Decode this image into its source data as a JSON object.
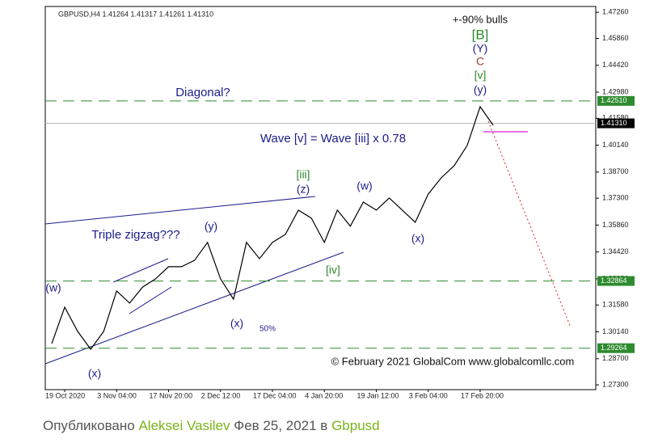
{
  "chart_data": {
    "type": "line",
    "header": "GBPUSD,H4  1.41264 1.41317 1.41261 1.41310",
    "categories": [
      null,
      "19 Oct 2020",
      null,
      null,
      null,
      "3 Nov 04:00",
      null,
      null,
      null,
      "17 Nov 20:00",
      null,
      null,
      null,
      "2 Dec 12:00",
      null,
      null,
      null,
      "17 Dec 04:00",
      null,
      null,
      null,
      "4 Jan 20:00",
      null,
      null,
      null,
      "19 Jan 12:00",
      null,
      null,
      null,
      "3 Feb 04:00",
      null,
      null,
      null,
      "17 Feb 20:00",
      null
    ],
    "series": [
      {
        "name": "GBPUSD",
        "color": "#000000",
        "values": [
          1.2951,
          1.3146,
          1.3016,
          1.2921,
          1.3016,
          1.3233,
          1.3168,
          1.3254,
          1.3298,
          1.3363,
          1.3363,
          1.3397,
          1.3493,
          1.3298,
          1.3189,
          1.3493,
          1.3406,
          1.3493,
          1.3536,
          1.3666,
          1.3623,
          1.3493,
          1.3666,
          1.358,
          1.3709,
          1.3666,
          1.3731,
          1.3666,
          1.3601,
          1.3752,
          1.3839,
          1.3904,
          1.4012,
          1.422,
          1.4121
        ]
      }
    ],
    "ylim": [
      1.2713,
      1.4757
    ],
    "yticks": [
      {
        "value": 1.4726,
        "label": "1.47260"
      },
      {
        "value": 1.4586,
        "label": "1.45860"
      },
      {
        "value": 1.4442,
        "label": "1.44420"
      },
      {
        "value": 1.4298,
        "label": "1.42980"
      },
      {
        "value": 1.4158,
        "label": "1.41580"
      },
      {
        "value": 1.4014,
        "label": "1.40140"
      },
      {
        "value": 1.387,
        "label": "1.38700"
      },
      {
        "value": 1.373,
        "label": "1.37300"
      },
      {
        "value": 1.3586,
        "label": "1.35860"
      },
      {
        "value": 1.3442,
        "label": "1.34420"
      },
      {
        "value": 1.3298,
        "label": "1.32980"
      },
      {
        "value": 1.3158,
        "label": "1.31580"
      },
      {
        "value": 1.3014,
        "label": "1.30140"
      },
      {
        "value": 1.287,
        "label": "1.28700"
      },
      {
        "value": 1.273,
        "label": "1.27300"
      }
    ],
    "levels": [
      {
        "value": 1.4251,
        "label": "1.42510"
      },
      {
        "value": 1.32864,
        "label": "1.32864"
      },
      {
        "value": 1.29264,
        "label": "1.29264"
      }
    ],
    "level_color": "#2e8b2e",
    "price_line": {
      "value": 1.4131,
      "label": "1.41310"
    },
    "annotations": [
      "+-90% bulls",
      "[B]",
      "(Y)",
      "C",
      "[v]",
      "(y)",
      "Diagonal?",
      "Wave [v] = Wave [iii] x 0.78",
      "[iii]",
      "(z)",
      "(w)",
      "(y)",
      "Triple zigzag???",
      "(x)",
      "[iv]",
      "(w)",
      "(x)",
      "50%",
      "(x)"
    ],
    "copyright": "© February 2021 GlobalCom www.globalcomllc.com"
  },
  "footer": {
    "prefix": "Опубликовано",
    "author": "Aleksei Vasilev",
    "date": "Фев 25, 2021 в",
    "topic": "Gbpusd"
  }
}
